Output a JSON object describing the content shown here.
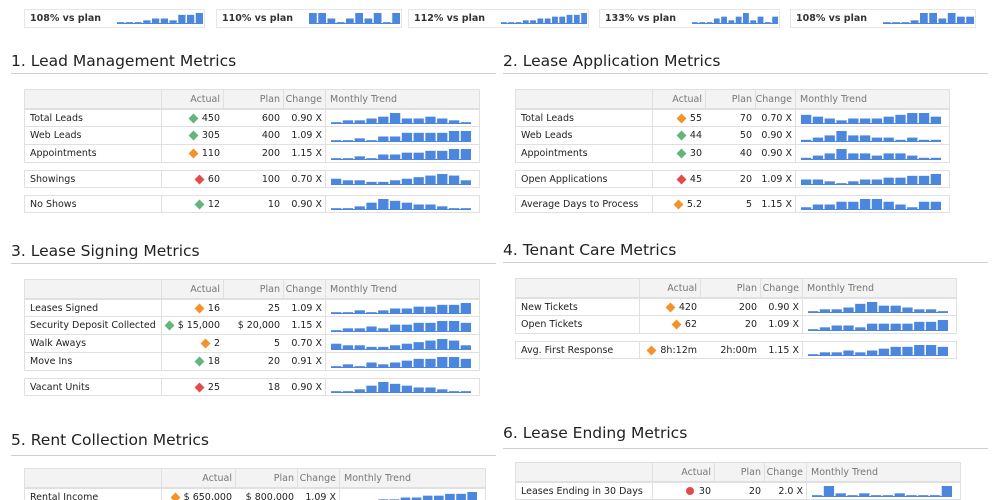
{
  "colors": {
    "bar": "#4b86df",
    "good": "#63b57c",
    "warn": "#f4932b",
    "bad": "#e24b4b"
  },
  "kpis": [
    {
      "label": "108% vs plan",
      "trend": [
        1,
        1,
        1,
        2,
        3,
        3,
        2,
        5,
        5,
        6
      ]
    },
    {
      "label": "110% vs plan",
      "trend": [
        6,
        6,
        3,
        1,
        3,
        6,
        3,
        6,
        1,
        6
      ]
    },
    {
      "label": "112% vs plan",
      "trend": [
        1,
        1,
        1,
        2,
        2,
        3,
        3,
        4,
        4,
        5,
        5,
        6
      ]
    },
    {
      "label": "133% vs plan",
      "trend": [
        1,
        1,
        1,
        3,
        4,
        2,
        4,
        6,
        2,
        4,
        1,
        4
      ]
    },
    {
      "label": "108% vs plan",
      "trend": [
        1,
        1,
        1,
        2,
        6,
        6,
        3,
        6,
        4,
        4
      ]
    }
  ],
  "sections": [
    {
      "title": "1. Lead Management Metrics",
      "headers": {
        "actual": "Actual",
        "plan": "Plan",
        "change": "Change",
        "trend": "Monthly Trend"
      },
      "groups": [
        [
          {
            "metric": "Total Leads",
            "status": "good",
            "actual": "450",
            "plan": "600",
            "change": "0.90 X",
            "trend": [
              1,
              2,
              2,
              3,
              4,
              6,
              3,
              3,
              4,
              3,
              2,
              1
            ]
          },
          {
            "metric": "Web Leads",
            "status": "good",
            "actual": "305",
            "plan": "400",
            "change": "1.09 X",
            "trend": [
              1,
              1,
              2,
              1,
              3,
              3,
              5,
              5,
              5,
              5,
              6,
              6
            ]
          },
          {
            "metric": "Appointments",
            "status": "warn",
            "actual": "110",
            "plan": "200",
            "change": "1.15 X",
            "trend": [
              1,
              1,
              2,
              1,
              3,
              3,
              4,
              4,
              5,
              5,
              6,
              6
            ]
          }
        ],
        [
          {
            "metric": "Showings",
            "status": "bad",
            "actual": "60",
            "plan": "100",
            "change": "0.70 X",
            "trend": [
              4,
              3,
              3,
              2,
              2,
              3,
              4,
              5,
              6,
              7,
              6,
              3
            ]
          }
        ],
        [
          {
            "metric": "No Shows",
            "status": "good",
            "actual": "12",
            "plan": "10",
            "change": "0.90 X",
            "trend": [
              1,
              1,
              2,
              4,
              6,
              5,
              4,
              3,
              3,
              2,
              1,
              1
            ]
          }
        ]
      ]
    },
    {
      "title": "2. Lease Application Metrics",
      "headers": {
        "actual": "Actual",
        "plan": "Plan",
        "change": "Change",
        "trend": "Monthly Trend"
      },
      "groups": [
        [
          {
            "metric": "Total Leads",
            "status": "warn",
            "actual": "55",
            "plan": "70",
            "change": "0.70 X",
            "trend": [
              5,
              4,
              3,
              2,
              3,
              3,
              3,
              4,
              5,
              6,
              6,
              4
            ]
          },
          {
            "metric": "Web Leads",
            "status": "good",
            "actual": "44",
            "plan": "50",
            "change": "0.90 X",
            "trend": [
              1,
              2,
              3,
              5,
              3,
              3,
              2,
              2,
              1,
              2,
              1,
              1
            ]
          },
          {
            "metric": "Appointments",
            "status": "good",
            "actual": "30",
            "plan": "40",
            "change": "0.90 X",
            "trend": [
              1,
              2,
              3,
              5,
              3,
              3,
              2,
              3,
              3,
              2,
              1,
              1
            ]
          }
        ],
        [
          {
            "metric": "Open Applications",
            "status": "bad",
            "actual": "45",
            "plan": "20",
            "change": "1.09 X",
            "trend": [
              3,
              3,
              2,
              1,
              2,
              3,
              3,
              4,
              4,
              5,
              5,
              6
            ]
          }
        ],
        [
          {
            "metric": "Average Days to Process",
            "status": "warn",
            "actual": "5.2",
            "plan": "5",
            "change": "1.15 X",
            "trend": [
              1,
              2,
              2,
              3,
              3,
              4,
              4,
              3,
              2,
              1,
              3,
              3
            ]
          }
        ]
      ]
    },
    {
      "title": "3. Lease Signing Metrics",
      "headers": {
        "actual": "Actual",
        "plan": "Plan",
        "change": "Change",
        "trend": "Monthly Trend"
      },
      "groups": [
        [
          {
            "metric": "Leases Signed",
            "status": "warn",
            "actual": "16",
            "plan": "25",
            "change": "1.09 X",
            "trend": [
              1,
              1,
              2,
              1,
              2,
              3,
              3,
              4,
              4,
              5,
              5,
              6
            ]
          },
          {
            "metric": "Security Deposit Collected",
            "status": "good",
            "actual": "$ 15,000",
            "plan": "$ 20,000",
            "change": "1.15 X",
            "trend": [
              1,
              2,
              2,
              3,
              2,
              4,
              4,
              5,
              5,
              6,
              6,
              5
            ]
          },
          {
            "metric": "Walk Aways",
            "status": "warn",
            "actual": "2",
            "plan": "5",
            "change": "0.70 X",
            "trend": [
              4,
              3,
              3,
              2,
              2,
              3,
              4,
              5,
              6,
              7,
              6,
              3
            ]
          },
          {
            "metric": "Move Ins",
            "status": "good",
            "actual": "18",
            "plan": "20",
            "change": "0.91 X",
            "trend": [
              1,
              2,
              1,
              3,
              2,
              3,
              4,
              5,
              5,
              6,
              6,
              5
            ]
          }
        ],
        [
          {
            "metric": "Vacant Units",
            "status": "bad",
            "actual": "25",
            "plan": "18",
            "change": "0.90 X",
            "trend": [
              1,
              1,
              2,
              4,
              6,
              5,
              4,
              3,
              3,
              2,
              1,
              1
            ]
          }
        ]
      ]
    },
    {
      "title": "4. Tenant Care Metrics",
      "headers": {
        "actual": "Actual",
        "plan": "Plan",
        "change": "Change",
        "trend": "Monthly Trend"
      },
      "groups": [
        [
          {
            "metric": "New Tickets",
            "status": "warn",
            "actual": "420",
            "plan": "200",
            "change": "0.90 X",
            "trend": [
              1,
              2,
              2,
              3,
              5,
              6,
              4,
              4,
              3,
              2,
              2,
              1
            ]
          },
          {
            "metric": "Open Tickets",
            "status": "warn",
            "actual": "62",
            "plan": "20",
            "change": "1.09 X",
            "trend": [
              1,
              2,
              3,
              3,
              2,
              4,
              4,
              4,
              4,
              5,
              5,
              6
            ]
          }
        ],
        [
          {
            "metric": "Avg. First Response",
            "status": "warn",
            "actual": "8h:12m",
            "plan": "2h:00m",
            "change": "1.15 X",
            "trend": [
              1,
              2,
              2,
              3,
              2,
              3,
              4,
              5,
              5,
              6,
              6,
              5
            ]
          }
        ]
      ]
    },
    {
      "title": "5. Rent Collection Metrics",
      "headers": {
        "actual": "Actual",
        "plan": "Plan",
        "change": "Change",
        "trend": "Monthly Trend"
      },
      "groups": [
        [
          {
            "metric": "Rental Income",
            "status": "warn",
            "actual": "$ 650,000",
            "plan": "$ 800,000",
            "change": "1.09 X",
            "trend": [
              1,
              1,
              1,
              2,
              2,
              3,
              3,
              4,
              4,
              5,
              5,
              6
            ]
          }
        ]
      ]
    },
    {
      "title": "6. Lease Ending Metrics",
      "headers": {
        "actual": "Actual",
        "plan": "Plan",
        "change": "Change",
        "trend": "Monthly Trend"
      },
      "groups": [
        [
          {
            "metric": "Leases Ending in 30 Days",
            "status": "bad",
            "shape": "dot",
            "actual": "30",
            "plan": "20",
            "change": "2.0 X",
            "trend": [
              1,
              6,
              2,
              1,
              2,
              1,
              1,
              2,
              1,
              1,
              1,
              6
            ]
          }
        ]
      ]
    }
  ]
}
